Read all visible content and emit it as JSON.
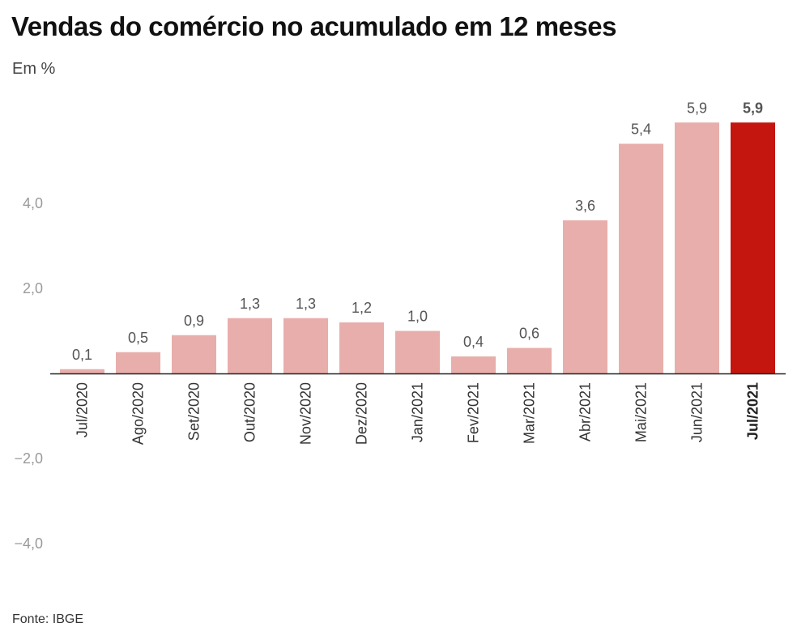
{
  "header": {
    "title": "Vendas do comércio no acumulado em 12 meses",
    "subtitle": "Em %"
  },
  "footer": {
    "source": "Fonte: IBGE"
  },
  "colors": {
    "bar": "#e8aeab",
    "highlight_bar": "#c4160e",
    "axis": "#222222"
  },
  "chart_data": {
    "type": "bar",
    "title": "Vendas do comércio no acumulado em 12 meses",
    "subtitle": "Em %",
    "xlabel": "",
    "ylabel": "",
    "categories": [
      "Jul/2020",
      "Ago/2020",
      "Set/2020",
      "Out/2020",
      "Nov/2020",
      "Dez/2020",
      "Jan/2021",
      "Fev/2021",
      "Mar/2021",
      "Abr/2021",
      "Mai/2021",
      "Jun/2021",
      "Jul/2021"
    ],
    "values": [
      0.1,
      0.5,
      0.9,
      1.3,
      1.3,
      1.2,
      1.0,
      0.4,
      0.6,
      3.6,
      5.4,
      5.9,
      5.9
    ],
    "data_labels": [
      "0,1",
      "0,5",
      "0,9",
      "1,3",
      "1,3",
      "1,2",
      "1,0",
      "0,4",
      "0,6",
      "3,6",
      "5,4",
      "5,9",
      "5,9"
    ],
    "highlight_index": 12,
    "ylim": [
      -4.0,
      6.0
    ],
    "yticks": [
      -4.0,
      -2.0,
      2.0,
      4.0
    ],
    "ytick_labels": [
      "−4,0",
      "−2,0",
      "2,0",
      "4,0"
    ],
    "grid": false,
    "legend": "none"
  }
}
